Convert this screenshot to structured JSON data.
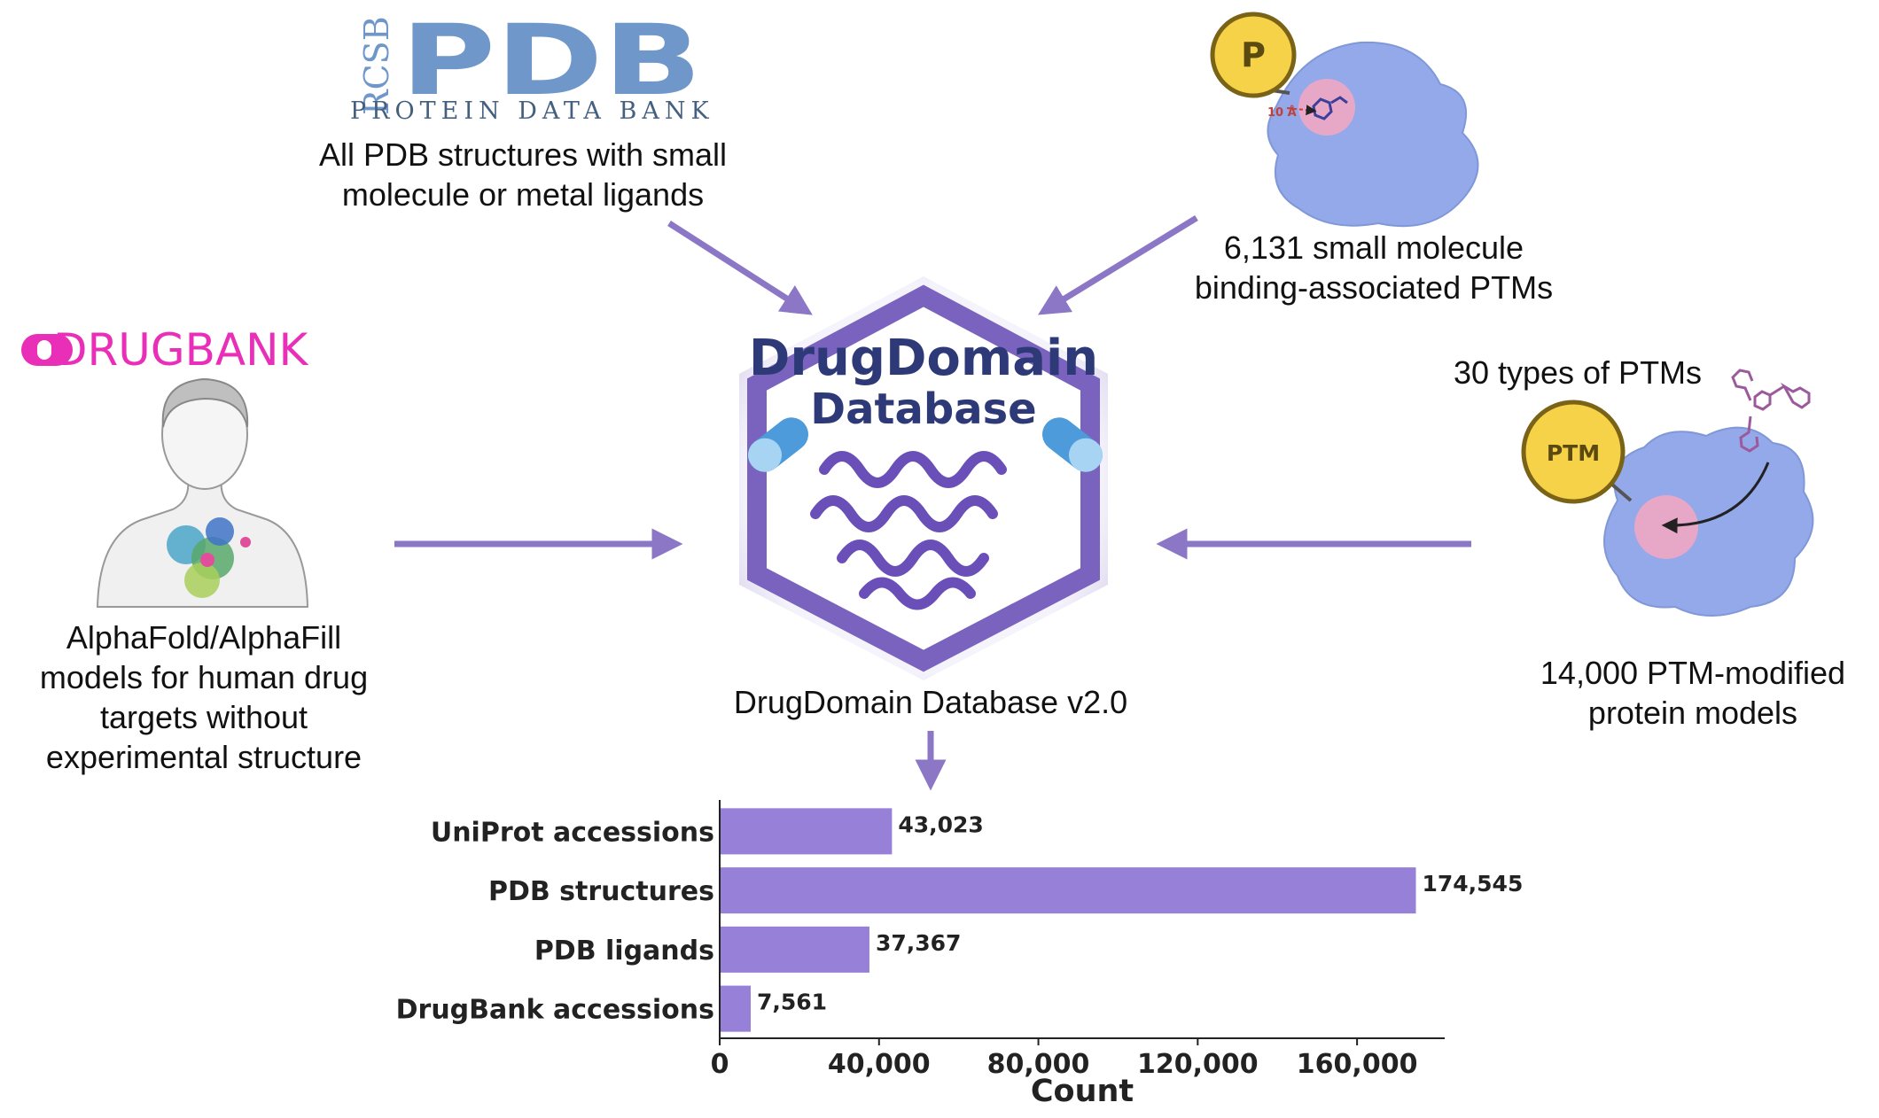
{
  "pdb_logo": {
    "rcsb": "RCSB",
    "pdb": "PDB",
    "subtitle": "PROTEIN DATA BANK"
  },
  "pdb_caption": [
    "All PDB structures with small",
    "molecule or metal ligands"
  ],
  "drugbank_logo": {
    "text": "DRUGBANK"
  },
  "drugbank_caption": [
    "AlphaFold/AlphaFill",
    "models for human drug",
    "targets without",
    "experimental structure"
  ],
  "ptm_top": {
    "badge": "P",
    "distance": "10 Å",
    "caption": [
      "6,131 small molecule",
      "binding-associated PTMs"
    ]
  },
  "ptm_right": {
    "header": "30 types of PTMs",
    "badge": "PTM",
    "caption": [
      "14,000 PTM-modified",
      "protein models"
    ]
  },
  "center_logo": {
    "line1": "DrugDomain",
    "line2": "Database"
  },
  "center_caption": "DrugDomain Database v2.0",
  "colors": {
    "arrow": "#8b77c6",
    "bar": "#9781d8",
    "protein": "#93a9ea",
    "badge": "#f5d247",
    "hex": "#7a62bf",
    "drugbank": "#e92fb8",
    "pdb_blue": "#6f97c9"
  },
  "chart_data": {
    "type": "bar",
    "orientation": "horizontal",
    "categories": [
      "UniProt accessions",
      "PDB structures",
      "PDB ligands",
      "DrugBank accessions"
    ],
    "values": [
      43023,
      174545,
      37367,
      7561
    ],
    "value_labels": [
      "43,023",
      "174,545",
      "37,367",
      "7,561"
    ],
    "xlabel": "Count",
    "xlim": [
      0,
      182000
    ],
    "xticks": [
      0,
      40000,
      80000,
      120000,
      160000
    ],
    "xtick_labels": [
      "0",
      "40,000",
      "80,000",
      "120,000",
      "160,000"
    ],
    "grid": false
  }
}
